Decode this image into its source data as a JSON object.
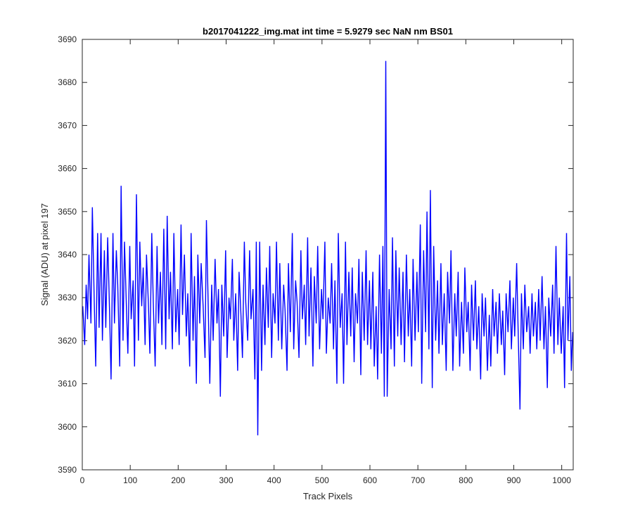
{
  "chart_data": {
    "type": "line",
    "title": "b2017041222_img.mat int time = 5.9279 sec  NaN nm BS01",
    "xlabel": "Track Pixels",
    "ylabel": "Signal (ADU) at pixel 197",
    "xlim": [
      0,
      1024
    ],
    "ylim": [
      3590,
      3690
    ],
    "xticks": [
      0,
      100,
      200,
      300,
      400,
      500,
      600,
      700,
      800,
      900,
      1000
    ],
    "yticks": [
      3590,
      3600,
      3610,
      3620,
      3630,
      3640,
      3650,
      3660,
      3670,
      3680,
      3690
    ],
    "grid": false,
    "legend": "none",
    "line_color": "#0000ff",
    "series": [
      {
        "points": [
          [
            1,
            3628
          ],
          [
            5,
            3619
          ],
          [
            8,
            3633
          ],
          [
            11,
            3625
          ],
          [
            14,
            3640
          ],
          [
            18,
            3624
          ],
          [
            21,
            3651
          ],
          [
            25,
            3629
          ],
          [
            28,
            3614
          ],
          [
            32,
            3645
          ],
          [
            35,
            3623
          ],
          [
            39,
            3645
          ],
          [
            42,
            3620
          ],
          [
            46,
            3641
          ],
          [
            49,
            3623
          ],
          [
            53,
            3644
          ],
          [
            57,
            3626
          ],
          [
            60,
            3611
          ],
          [
            64,
            3645
          ],
          [
            67,
            3624
          ],
          [
            71,
            3641
          ],
          [
            74,
            3633
          ],
          [
            78,
            3614
          ],
          [
            81,
            3656
          ],
          [
            85,
            3620
          ],
          [
            88,
            3643
          ],
          [
            92,
            3628
          ],
          [
            95,
            3617
          ],
          [
            99,
            3642
          ],
          [
            102,
            3625
          ],
          [
            106,
            3634
          ],
          [
            109,
            3614
          ],
          [
            113,
            3654
          ],
          [
            117,
            3620
          ],
          [
            120,
            3643
          ],
          [
            124,
            3628
          ],
          [
            127,
            3637
          ],
          [
            131,
            3619
          ],
          [
            134,
            3640
          ],
          [
            138,
            3628
          ],
          [
            141,
            3617
          ],
          [
            145,
            3645
          ],
          [
            148,
            3629
          ],
          [
            152,
            3614
          ],
          [
            156,
            3642
          ],
          [
            159,
            3624
          ],
          [
            163,
            3636
          ],
          [
            166,
            3619
          ],
          [
            170,
            3646
          ],
          [
            174,
            3618
          ],
          [
            177,
            3649
          ],
          [
            181,
            3625
          ],
          [
            184,
            3636
          ],
          [
            188,
            3618
          ],
          [
            191,
            3645
          ],
          [
            195,
            3622
          ],
          [
            199,
            3632
          ],
          [
            202,
            3619
          ],
          [
            206,
            3647
          ],
          [
            209,
            3626
          ],
          [
            213,
            3640
          ],
          [
            217,
            3621
          ],
          [
            220,
            3631
          ],
          [
            224,
            3614
          ],
          [
            227,
            3645
          ],
          [
            231,
            3620
          ],
          [
            234,
            3635
          ],
          [
            238,
            3610
          ],
          [
            241,
            3640
          ],
          [
            245,
            3624
          ],
          [
            248,
            3638
          ],
          [
            252,
            3628
          ],
          [
            256,
            3616
          ],
          [
            259,
            3648
          ],
          [
            263,
            3626
          ],
          [
            266,
            3610
          ],
          [
            270,
            3633
          ],
          [
            273,
            3620
          ],
          [
            277,
            3639
          ],
          [
            281,
            3624
          ],
          [
            284,
            3632
          ],
          [
            288,
            3607
          ],
          [
            291,
            3633
          ],
          [
            295,
            3621
          ],
          [
            299,
            3641
          ],
          [
            302,
            3616
          ],
          [
            306,
            3630
          ],
          [
            309,
            3625
          ],
          [
            313,
            3639
          ],
          [
            316,
            3620
          ],
          [
            320,
            3631
          ],
          [
            324,
            3613
          ],
          [
            327,
            3636
          ],
          [
            331,
            3626
          ],
          [
            334,
            3616
          ],
          [
            338,
            3643
          ],
          [
            341,
            3629
          ],
          [
            345,
            3620
          ],
          [
            349,
            3641
          ],
          [
            352,
            3625
          ],
          [
            356,
            3632
          ],
          [
            360,
            3611
          ],
          [
            363,
            3643
          ],
          [
            366,
            3598
          ],
          [
            370,
            3643
          ],
          [
            374,
            3613
          ],
          [
            377,
            3633
          ],
          [
            381,
            3619
          ],
          [
            384,
            3637
          ],
          [
            388,
            3623
          ],
          [
            391,
            3642
          ],
          [
            395,
            3616
          ],
          [
            398,
            3631
          ],
          [
            402,
            3624
          ],
          [
            405,
            3643
          ],
          [
            409,
            3620
          ],
          [
            412,
            3638
          ],
          [
            416,
            3618
          ],
          [
            420,
            3633
          ],
          [
            423,
            3627
          ],
          [
            427,
            3613
          ],
          [
            430,
            3638
          ],
          [
            434,
            3622
          ],
          [
            438,
            3645
          ],
          [
            441,
            3618
          ],
          [
            445,
            3634
          ],
          [
            448,
            3629
          ],
          [
            452,
            3616
          ],
          [
            456,
            3641
          ],
          [
            459,
            3625
          ],
          [
            463,
            3633
          ],
          [
            466,
            3619
          ],
          [
            470,
            3644
          ],
          [
            473,
            3621
          ],
          [
            477,
            3637
          ],
          [
            481,
            3614
          ],
          [
            484,
            3635
          ],
          [
            488,
            3624
          ],
          [
            491,
            3642
          ],
          [
            495,
            3618
          ],
          [
            499,
            3632
          ],
          [
            502,
            3625
          ],
          [
            506,
            3643
          ],
          [
            509,
            3617
          ],
          [
            513,
            3630
          ],
          [
            517,
            3624
          ],
          [
            520,
            3638
          ],
          [
            524,
            3618
          ],
          [
            527,
            3634
          ],
          [
            531,
            3610
          ],
          [
            534,
            3645
          ],
          [
            538,
            3623
          ],
          [
            542,
            3631
          ],
          [
            545,
            3610
          ],
          [
            549,
            3643
          ],
          [
            552,
            3619
          ],
          [
            556,
            3636
          ],
          [
            560,
            3621
          ],
          [
            563,
            3637
          ],
          [
            567,
            3615
          ],
          [
            570,
            3631
          ],
          [
            574,
            3624
          ],
          [
            577,
            3639
          ],
          [
            581,
            3612
          ],
          [
            584,
            3636
          ],
          [
            588,
            3620
          ],
          [
            592,
            3641
          ],
          [
            595,
            3619
          ],
          [
            599,
            3634
          ],
          [
            602,
            3618
          ],
          [
            606,
            3636
          ],
          [
            609,
            3614
          ],
          [
            613,
            3628
          ],
          [
            616,
            3611
          ],
          [
            620,
            3640
          ],
          [
            624,
            3617
          ],
          [
            627,
            3642
          ],
          [
            630,
            3607
          ],
          [
            633,
            3685
          ],
          [
            636,
            3607
          ],
          [
            640,
            3632
          ],
          [
            644,
            3618
          ],
          [
            647,
            3644
          ],
          [
            651,
            3614
          ],
          [
            654,
            3641
          ],
          [
            658,
            3621
          ],
          [
            661,
            3637
          ],
          [
            665,
            3619
          ],
          [
            669,
            3636
          ],
          [
            672,
            3615
          ],
          [
            676,
            3640
          ],
          [
            680,
            3621
          ],
          [
            683,
            3632
          ],
          [
            687,
            3614
          ],
          [
            690,
            3639
          ],
          [
            694,
            3620
          ],
          [
            698,
            3636
          ],
          [
            701,
            3622
          ],
          [
            705,
            3647
          ],
          [
            708,
            3610
          ],
          [
            712,
            3641
          ],
          [
            716,
            3622
          ],
          [
            719,
            3650
          ],
          [
            723,
            3618
          ],
          [
            726,
            3655
          ],
          [
            730,
            3609
          ],
          [
            733,
            3642
          ],
          [
            737,
            3620
          ],
          [
            741,
            3634
          ],
          [
            744,
            3617
          ],
          [
            748,
            3638
          ],
          [
            751,
            3619
          ],
          [
            755,
            3631
          ],
          [
            759,
            3613
          ],
          [
            762,
            3636
          ],
          [
            766,
            3624
          ],
          [
            769,
            3641
          ],
          [
            773,
            3613
          ],
          [
            777,
            3631
          ],
          [
            780,
            3621
          ],
          [
            784,
            3636
          ],
          [
            787,
            3614
          ],
          [
            791,
            3629
          ],
          [
            795,
            3617
          ],
          [
            798,
            3637
          ],
          [
            802,
            3622
          ],
          [
            805,
            3629
          ],
          [
            809,
            3613
          ],
          [
            812,
            3633
          ],
          [
            816,
            3620
          ],
          [
            820,
            3634
          ],
          [
            823,
            3618
          ],
          [
            827,
            3628
          ],
          [
            831,
            3611
          ],
          [
            834,
            3631
          ],
          [
            838,
            3621
          ],
          [
            841,
            3630
          ],
          [
            845,
            3613
          ],
          [
            849,
            3626
          ],
          [
            852,
            3614
          ],
          [
            856,
            3632
          ],
          [
            859,
            3621
          ],
          [
            863,
            3629
          ],
          [
            866,
            3617
          ],
          [
            870,
            3631
          ],
          [
            874,
            3619
          ],
          [
            877,
            3627
          ],
          [
            881,
            3612
          ],
          [
            884,
            3631
          ],
          [
            888,
            3622
          ],
          [
            892,
            3634
          ],
          [
            895,
            3618
          ],
          [
            899,
            3630
          ],
          [
            902,
            3621
          ],
          [
            906,
            3638
          ],
          [
            909,
            3623
          ],
          [
            913,
            3604
          ],
          [
            916,
            3631
          ],
          [
            920,
            3618
          ],
          [
            923,
            3633
          ],
          [
            927,
            3622
          ],
          [
            931,
            3628
          ],
          [
            934,
            3617
          ],
          [
            938,
            3631
          ],
          [
            941,
            3621
          ],
          [
            945,
            3629
          ],
          [
            948,
            3618
          ],
          [
            952,
            3632
          ],
          [
            955,
            3620
          ],
          [
            959,
            3635
          ],
          [
            963,
            3618
          ],
          [
            966,
            3628
          ],
          [
            970,
            3609
          ],
          [
            973,
            3630
          ],
          [
            977,
            3621
          ],
          [
            981,
            3633
          ],
          [
            984,
            3617
          ],
          [
            988,
            3642
          ],
          [
            992,
            3619
          ],
          [
            995,
            3630
          ],
          [
            999,
            3617
          ],
          [
            1003,
            3628
          ],
          [
            1006,
            3609
          ],
          [
            1010,
            3645
          ],
          [
            1013,
            3620
          ],
          [
            1017,
            3635
          ],
          [
            1020,
            3613
          ],
          [
            1023,
            3622
          ]
        ]
      }
    ]
  }
}
